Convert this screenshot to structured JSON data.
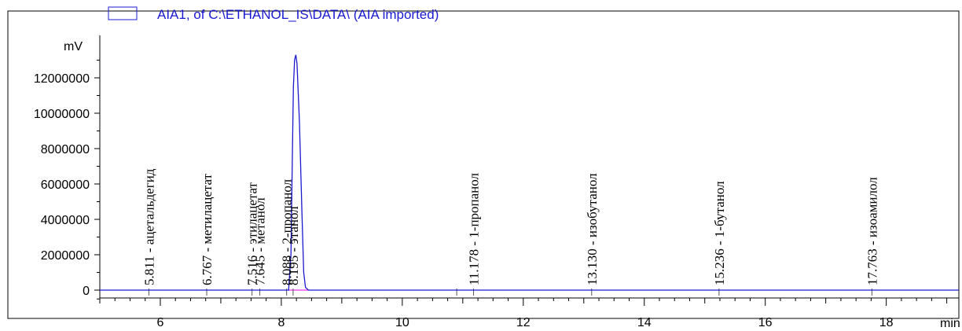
{
  "chart_data": {
    "type": "line",
    "title": "",
    "legend": {
      "entries": [
        "AIA1, of C:\\ETHANOL_IS\\DATA\\ (AIA imported)"
      ],
      "placement": "top-left",
      "line_color": "#1a1ad0"
    },
    "ylabel": "mV",
    "xlabel": "min",
    "xlim": [
      5.0,
      19.2
    ],
    "ylim": [
      -500000,
      14200000
    ],
    "x_ticks": [
      6,
      8,
      10,
      12,
      14,
      16,
      18
    ],
    "y_ticks": [
      0,
      2000000,
      4000000,
      6000000,
      8000000,
      10000000,
      12000000
    ],
    "y_tick_labels": [
      "0",
      "2000000",
      "4000000",
      "6000000",
      "8000000",
      "10000000",
      "12000000"
    ],
    "x_tick_labels": [
      "6",
      "8",
      "10",
      "12",
      "14",
      "16",
      "18"
    ],
    "series": [
      {
        "color": "#1a1ad0",
        "x": [
          5.0,
          7.5,
          8.0,
          8.12,
          8.16,
          8.18,
          8.2,
          8.22,
          8.24,
          8.26,
          8.3,
          8.34,
          8.37,
          8.4,
          8.45,
          19.2
        ],
        "y": [
          0,
          0,
          0,
          0,
          2000000,
          7000000,
          11500000,
          13000000,
          13300000,
          12800000,
          9500000,
          4500000,
          1000000,
          150000,
          0,
          0
        ]
      }
    ],
    "baseline_color": "#e000e0",
    "peaks": [
      {
        "rt": 5.811,
        "label": "5.811 -  ацетальдегид"
      },
      {
        "rt": 6.767,
        "label": "6.767 -  метилацетат"
      },
      {
        "rt": 7.516,
        "label": "7.516 -  этилацетат"
      },
      {
        "rt": 7.645,
        "label": "7.645 -  метанол"
      },
      {
        "rt": 8.088,
        "label": "8.088 -  2-пропанол"
      },
      {
        "rt": 8.195,
        "label": "8.195 -  этанол"
      },
      {
        "rt": 11.178,
        "label": "11.178 -  1-пропанол"
      },
      {
        "rt": 13.13,
        "label": "13.130 -  изобутанол"
      },
      {
        "rt": 15.236,
        "label": "15.236 -  1-бутанол"
      },
      {
        "rt": 17.763,
        "label": "17.763 -  изоамилол"
      }
    ],
    "grid": false
  }
}
